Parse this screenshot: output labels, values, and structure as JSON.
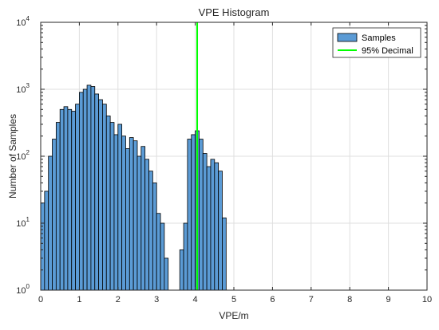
{
  "chart_data": {
    "type": "bar",
    "title": "VPE Histogram",
    "xlabel": "VPE/m",
    "ylabel": "Number of Samples",
    "xlim": [
      0,
      10
    ],
    "ylim": [
      1,
      10000
    ],
    "yscale": "log",
    "grid": true,
    "legend_position": "top-right",
    "xticks": [
      "0",
      "1",
      "2",
      "3",
      "4",
      "5",
      "6",
      "7",
      "8",
      "9",
      "10"
    ],
    "yticks": [
      {
        "base": "10",
        "exp": "0"
      },
      {
        "base": "10",
        "exp": "1"
      },
      {
        "base": "10",
        "exp": "2"
      },
      {
        "base": "10",
        "exp": "3"
      },
      {
        "base": "10",
        "exp": "4"
      }
    ],
    "bin_width": 0.1,
    "series": [
      {
        "name": "Samples",
        "color": "#5B9BD5",
        "edge_color": "#000000",
        "bins_start": [
          0.0,
          0.1,
          0.2,
          0.3,
          0.4,
          0.5,
          0.6,
          0.7,
          0.8,
          0.9,
          1.0,
          1.1,
          1.2,
          1.3,
          1.4,
          1.5,
          1.6,
          1.7,
          1.8,
          1.9,
          2.0,
          2.1,
          2.2,
          2.3,
          2.4,
          2.5,
          2.6,
          2.7,
          2.8,
          2.9,
          3.0,
          3.1,
          3.2,
          3.3,
          3.4,
          3.5,
          3.6,
          3.7,
          3.8,
          3.9,
          4.0,
          4.1,
          4.2,
          4.3,
          4.4,
          4.5,
          4.6,
          4.7
        ],
        "counts": [
          20,
          30,
          100,
          180,
          320,
          500,
          550,
          500,
          470,
          600,
          900,
          1000,
          1150,
          1100,
          850,
          700,
          600,
          400,
          320,
          210,
          300,
          200,
          130,
          190,
          170,
          100,
          140,
          90,
          60,
          40,
          14,
          10,
          3,
          1,
          1,
          1,
          4,
          10,
          180,
          210,
          240,
          180,
          110,
          70,
          90,
          80,
          60,
          12
        ]
      }
    ],
    "reference_line": {
      "name": "95% Decimal",
      "x": 4.05,
      "color": "#00FF00"
    },
    "legend": {
      "entries": [
        "Samples",
        "95% Decimal"
      ]
    }
  }
}
